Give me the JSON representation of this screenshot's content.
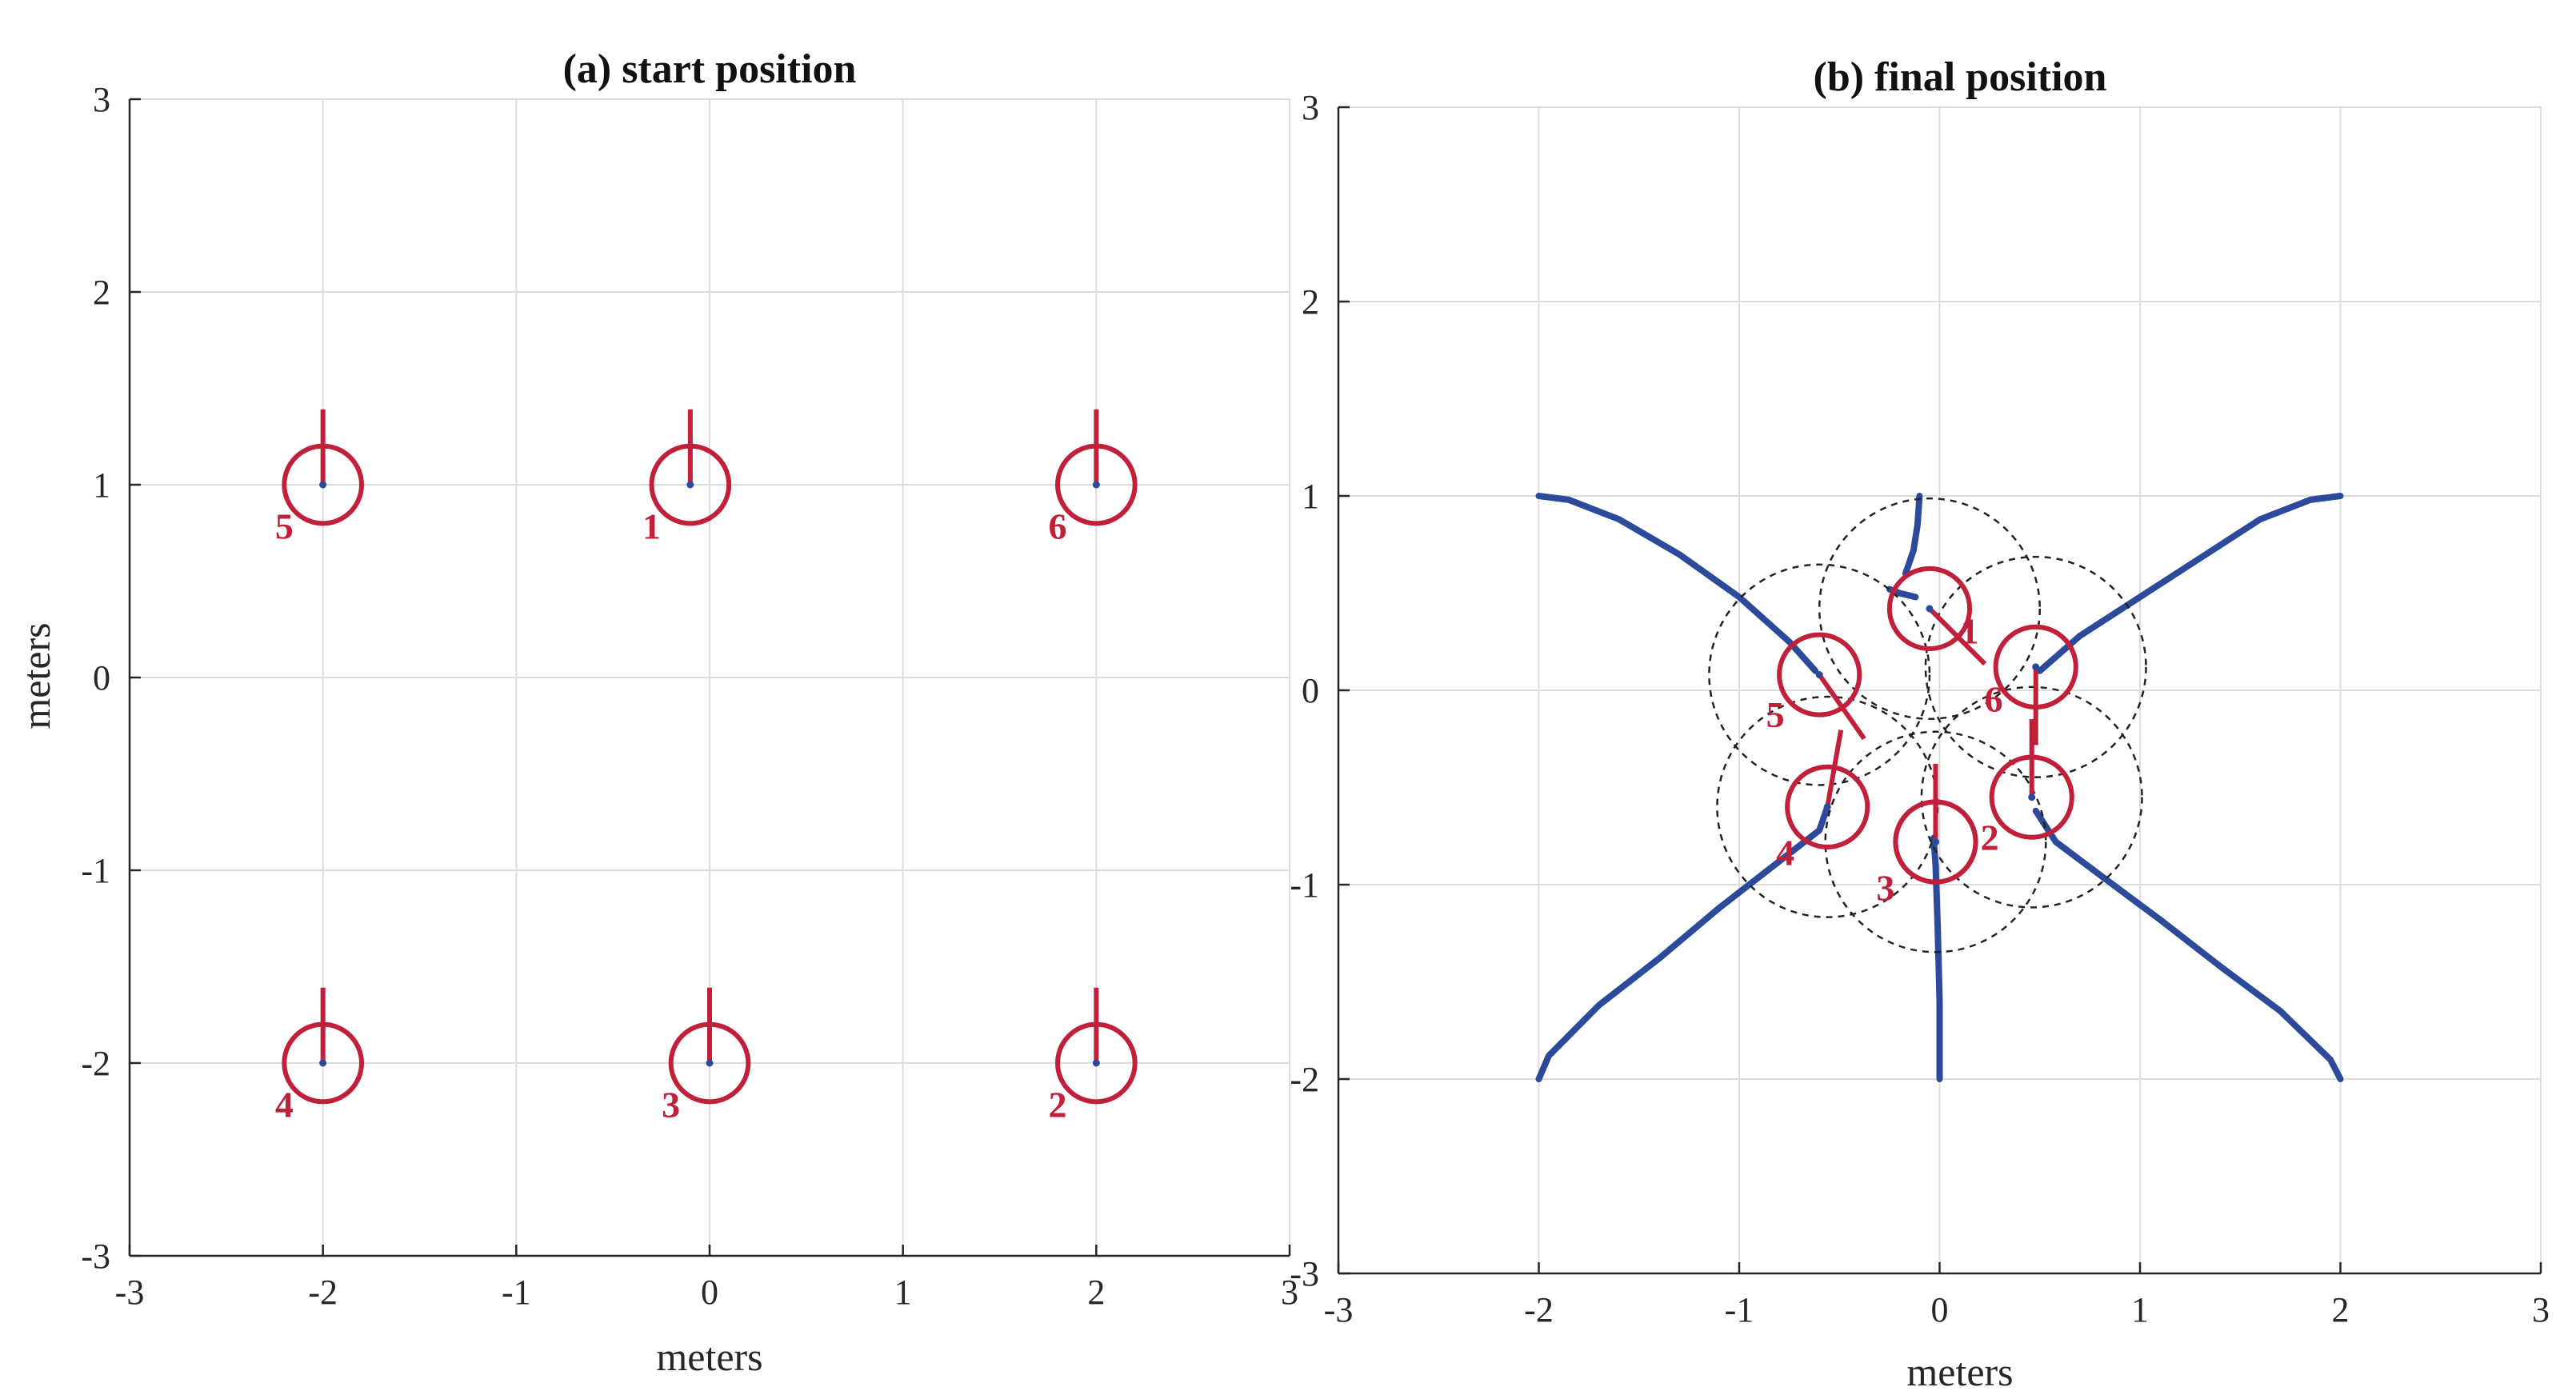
{
  "chart_data": [
    {
      "type": "scatter",
      "title": "(a) start position",
      "xlabel": "meters",
      "ylabel": "meters",
      "xlim": [
        -3,
        3
      ],
      "ylim": [
        -3,
        3
      ],
      "xticks": [
        "-3",
        "-2",
        "-1",
        "0",
        "1",
        "2",
        "3"
      ],
      "yticks": [
        "-3",
        "-2",
        "-1",
        "0",
        "1",
        "2",
        "3"
      ],
      "grid": true,
      "robot_radius": 0.2,
      "robots": [
        {
          "label": "1",
          "x": -0.1,
          "y": 1.0,
          "heading_deg": 90
        },
        {
          "label": "2",
          "x": 2.0,
          "y": -2.0,
          "heading_deg": 90
        },
        {
          "label": "3",
          "x": 0.0,
          "y": -2.0,
          "heading_deg": 90
        },
        {
          "label": "4",
          "x": -2.0,
          "y": -2.0,
          "heading_deg": 90
        },
        {
          "label": "5",
          "x": -2.0,
          "y": 1.0,
          "heading_deg": 90
        },
        {
          "label": "6",
          "x": 2.0,
          "y": 1.0,
          "heading_deg": 90
        }
      ]
    },
    {
      "type": "line",
      "title": "(b) final position",
      "xlabel": "meters",
      "ylabel": "",
      "xlim": [
        -3,
        3
      ],
      "ylim": [
        -3,
        3
      ],
      "xticks": [
        "-3",
        "-2",
        "-1",
        "0",
        "1",
        "2",
        "3"
      ],
      "yticks": [
        "-3",
        "-2",
        "-1",
        "0",
        "1",
        "2",
        "3"
      ],
      "grid": true,
      "robot_radius": 0.2,
      "sensing_radius": 0.55,
      "robots": [
        {
          "label": "1",
          "x": -0.05,
          "y": 0.42,
          "heading_deg": -45
        },
        {
          "label": "2",
          "x": -0.02,
          "y": -0.78,
          "heading_deg": 90
        },
        {
          "label": "3",
          "x": -0.02,
          "y": -0.78,
          "heading_deg": 90
        },
        {
          "label": "4",
          "x": -0.56,
          "y": -0.6,
          "heading_deg": 80
        },
        {
          "label": "5",
          "x": -0.6,
          "y": 0.08,
          "heading_deg": -55
        },
        {
          "label": "6",
          "x": 0.48,
          "y": 0.12,
          "heading_deg": -90
        },
        {
          "label": "",
          "x": 0.46,
          "y": -0.55,
          "heading_deg": 90
        }
      ],
      "trajectories": [
        {
          "points": [
            [
              -0.1,
              1.0
            ],
            [
              -0.11,
              0.85
            ],
            [
              -0.13,
              0.72
            ],
            [
              -0.17,
              0.6
            ]
          ]
        },
        {
          "points": [
            [
              -0.25,
              0.52
            ],
            [
              -0.2,
              0.5
            ],
            [
              -0.12,
              0.48
            ]
          ]
        },
        {
          "points": [
            [
              -2.0,
              1.0
            ],
            [
              -1.85,
              0.98
            ],
            [
              -1.6,
              0.88
            ],
            [
              -1.3,
              0.7
            ],
            [
              -1.0,
              0.48
            ],
            [
              -0.75,
              0.25
            ],
            [
              -0.62,
              0.1
            ]
          ]
        },
        {
          "points": [
            [
              2.0,
              1.0
            ],
            [
              1.85,
              0.98
            ],
            [
              1.6,
              0.88
            ],
            [
              1.3,
              0.68
            ],
            [
              1.0,
              0.48
            ],
            [
              0.7,
              0.28
            ],
            [
              0.5,
              0.1
            ]
          ]
        },
        {
          "points": [
            [
              -2.0,
              -2.0
            ],
            [
              -1.95,
              -1.88
            ],
            [
              -1.7,
              -1.62
            ],
            [
              -1.4,
              -1.38
            ],
            [
              -1.1,
              -1.12
            ],
            [
              -0.8,
              -0.88
            ],
            [
              -0.6,
              -0.72
            ],
            [
              -0.56,
              -0.6
            ]
          ]
        },
        {
          "points": [
            [
              0.0,
              -2.0
            ],
            [
              0.0,
              -1.6
            ],
            [
              -0.01,
              -1.2
            ],
            [
              -0.02,
              -0.9
            ],
            [
              -0.03,
              -0.76
            ]
          ]
        },
        {
          "points": [
            [
              2.0,
              -2.0
            ],
            [
              1.95,
              -1.9
            ],
            [
              1.7,
              -1.65
            ],
            [
              1.4,
              -1.42
            ],
            [
              1.1,
              -1.18
            ],
            [
              0.8,
              -0.95
            ],
            [
              0.58,
              -0.78
            ],
            [
              0.48,
              -0.62
            ]
          ]
        }
      ]
    }
  ]
}
